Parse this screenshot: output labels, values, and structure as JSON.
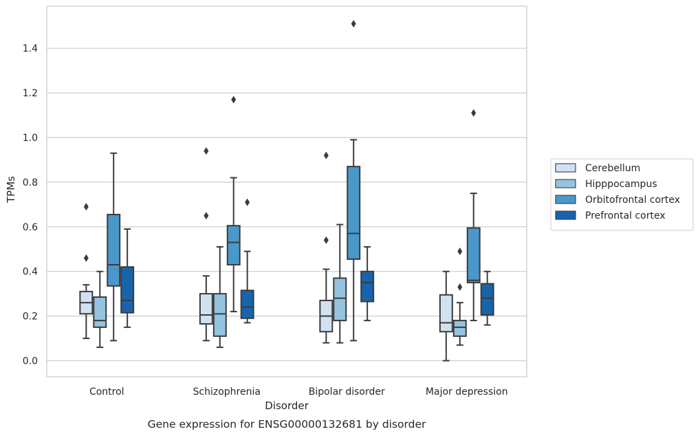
{
  "chart_data": {
    "type": "box",
    "title": "",
    "caption": "Gene expression for ENSG00000132681 by disorder",
    "xlabel": "Disorder",
    "ylabel": "TPMs",
    "ylim": [
      -0.07,
      1.6
    ],
    "yticks": [
      "0.0",
      "0.2",
      "0.4",
      "0.6",
      "0.8",
      "1.0",
      "1.2",
      "1.4"
    ],
    "grid": "horizontal",
    "legend_position": "right",
    "categories": [
      "Control",
      "Schizophrenia",
      "Bipolar disorder",
      "Major depression"
    ],
    "series": [
      {
        "name": "Cerebellum",
        "color": "#d0e1f2",
        "boxes": [
          {
            "whisker_low": 0.1,
            "q1": 0.21,
            "median": 0.26,
            "q3": 0.31,
            "whisker_high": 0.34,
            "outliers": [
              0.46,
              0.69
            ]
          },
          {
            "whisker_low": 0.09,
            "q1": 0.165,
            "median": 0.205,
            "q3": 0.3,
            "whisker_high": 0.38,
            "outliers": [
              0.65,
              0.94
            ]
          },
          {
            "whisker_low": 0.08,
            "q1": 0.13,
            "median": 0.2,
            "q3": 0.27,
            "whisker_high": 0.41,
            "outliers": [
              0.54,
              0.92
            ]
          },
          {
            "whisker_low": 0.0,
            "q1": 0.13,
            "median": 0.17,
            "q3": 0.295,
            "whisker_high": 0.4,
            "outliers": []
          }
        ]
      },
      {
        "name": "Hipppocampus",
        "color": "#94c4df",
        "boxes": [
          {
            "whisker_low": 0.06,
            "q1": 0.15,
            "median": 0.18,
            "q3": 0.285,
            "whisker_high": 0.4,
            "outliers": []
          },
          {
            "whisker_low": 0.06,
            "q1": 0.11,
            "median": 0.21,
            "q3": 0.3,
            "whisker_high": 0.51,
            "outliers": []
          },
          {
            "whisker_low": 0.08,
            "q1": 0.18,
            "median": 0.28,
            "q3": 0.37,
            "whisker_high": 0.61,
            "outliers": []
          },
          {
            "whisker_low": 0.07,
            "q1": 0.11,
            "median": 0.15,
            "q3": 0.18,
            "whisker_high": 0.26,
            "outliers": [
              0.33,
              0.49
            ]
          }
        ]
      },
      {
        "name": "Orbitofrontal cortex",
        "color": "#4a98c9",
        "boxes": [
          {
            "whisker_low": 0.09,
            "q1": 0.335,
            "median": 0.43,
            "q3": 0.655,
            "whisker_high": 0.93,
            "outliers": []
          },
          {
            "whisker_low": 0.22,
            "q1": 0.43,
            "median": 0.53,
            "q3": 0.605,
            "whisker_high": 0.82,
            "outliers": [
              1.17
            ]
          },
          {
            "whisker_low": 0.09,
            "q1": 0.455,
            "median": 0.57,
            "q3": 0.87,
            "whisker_high": 0.99,
            "outliers": [
              1.51
            ]
          },
          {
            "whisker_low": 0.18,
            "q1": 0.35,
            "median": 0.36,
            "q3": 0.595,
            "whisker_high": 0.75,
            "outliers": [
              1.11
            ]
          }
        ]
      },
      {
        "name": "Prefrontal cortex",
        "color": "#1764ab",
        "boxes": [
          {
            "whisker_low": 0.15,
            "q1": 0.215,
            "median": 0.27,
            "q3": 0.42,
            "whisker_high": 0.59,
            "outliers": []
          },
          {
            "whisker_low": 0.17,
            "q1": 0.19,
            "median": 0.24,
            "q3": 0.315,
            "whisker_high": 0.49,
            "outliers": [
              0.71
            ]
          },
          {
            "whisker_low": 0.18,
            "q1": 0.265,
            "median": 0.35,
            "q3": 0.4,
            "whisker_high": 0.51,
            "outliers": []
          },
          {
            "whisker_low": 0.16,
            "q1": 0.205,
            "median": 0.28,
            "q3": 0.345,
            "whisker_high": 0.4,
            "outliers": []
          }
        ]
      }
    ]
  }
}
